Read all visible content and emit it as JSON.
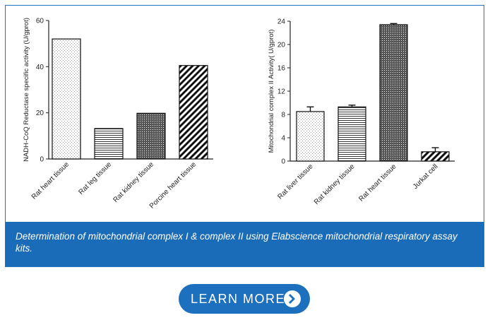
{
  "chart_data": [
    {
      "type": "bar",
      "ylabel": "NADH-CoQ Reductase specific activity (U/gprot)",
      "ylim": [
        0,
        60
      ],
      "yticks": [
        0,
        20,
        40,
        60
      ],
      "categories": [
        "Rat heart tissue",
        "Rat leg tissue",
        "Rat kidney tissue",
        "Porcine heart tissue"
      ],
      "values": [
        52,
        13.2,
        19.8,
        40.5
      ],
      "patterns": [
        "dots",
        "horizontal-lines",
        "crosshatch",
        "diagonal-lines"
      ],
      "grid": false
    },
    {
      "type": "bar",
      "ylabel": "Mitochondrial  complex II Activity( U/gprot)",
      "ylim": [
        0,
        24
      ],
      "yticks": [
        0,
        4,
        8,
        12,
        16,
        20,
        24
      ],
      "categories": [
        "Rat liver tissue",
        "Rat kidney tissue",
        "Rat heart tissue",
        "Jurkat cell"
      ],
      "values": [
        8.5,
        9.3,
        23.4,
        1.6
      ],
      "errors": [
        0.8,
        0.3,
        0.2,
        0.7
      ],
      "patterns": [
        "dots",
        "horizontal-lines",
        "crosshatch",
        "diagonal-lines"
      ],
      "grid": false
    }
  ],
  "caption": "Determination of mitochondrial complex I & complex II using Elabscience mitochondrial respiratory assay kits.",
  "button": {
    "label": "LEARN  MORE",
    "icon": "chevron-right-icon"
  },
  "colors": {
    "accent": "#1a6cb8",
    "border": "#1f75bf"
  }
}
